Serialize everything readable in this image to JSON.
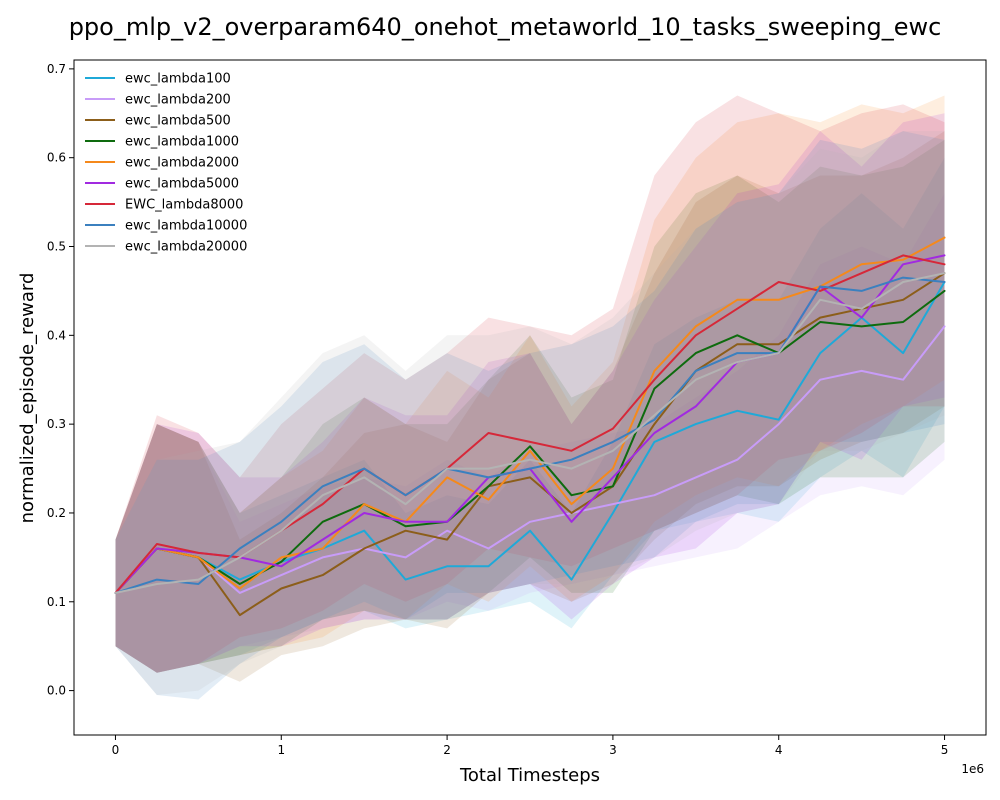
{
  "chart_data": {
    "type": "line",
    "title": "ppo_mlp_v2_overparam640_onehot_metaworld_10_tasks_sweeping_ewc",
    "xlabel": "Total Timesteps",
    "ylabel": "normalized_episode_reward",
    "x_offset_label": "1e6",
    "xlim": [
      -0.25,
      5.25
    ],
    "ylim": [
      -0.05,
      0.71
    ],
    "xticks": [
      0,
      1,
      2,
      3,
      4,
      5
    ],
    "yticks": [
      0.0,
      0.1,
      0.2,
      0.3,
      0.4,
      0.5,
      0.6,
      0.7
    ],
    "xtick_labels": [
      "0",
      "1",
      "2",
      "3",
      "4",
      "5"
    ],
    "ytick_labels": [
      "0.0",
      "0.1",
      "0.2",
      "0.3",
      "0.4",
      "0.5",
      "0.6",
      "0.7"
    ],
    "grid": false,
    "legend_position": "upper-left",
    "x": [
      0,
      0.25,
      0.5,
      0.75,
      1.0,
      1.25,
      1.5,
      1.75,
      2.0,
      2.25,
      2.5,
      2.75,
      3.0,
      3.25,
      3.5,
      3.75,
      4.0,
      4.25,
      4.5,
      4.75,
      5.0
    ],
    "series": [
      {
        "name": "ewc_lambda100",
        "color": "#1fa9d8",
        "values": [
          0.11,
          0.16,
          0.15,
          0.125,
          0.145,
          0.16,
          0.18,
          0.125,
          0.14,
          0.14,
          0.18,
          0.125,
          0.2,
          0.28,
          0.3,
          0.315,
          0.305,
          0.38,
          0.42,
          0.38,
          0.46
        ],
        "upper": [
          0.17,
          0.3,
          0.28,
          0.2,
          0.22,
          0.24,
          0.26,
          0.2,
          0.22,
          0.21,
          0.26,
          0.2,
          0.28,
          0.39,
          0.42,
          0.44,
          0.44,
          0.52,
          0.56,
          0.52,
          0.6
        ],
        "lower": [
          0.05,
          0.02,
          0.03,
          0.04,
          0.06,
          0.08,
          0.09,
          0.07,
          0.08,
          0.09,
          0.1,
          0.07,
          0.13,
          0.18,
          0.19,
          0.2,
          0.19,
          0.24,
          0.27,
          0.24,
          0.32
        ]
      },
      {
        "name": "ewc_lambda200",
        "color": "#c89cf8",
        "values": [
          0.11,
          0.16,
          0.15,
          0.11,
          0.13,
          0.15,
          0.16,
          0.15,
          0.18,
          0.16,
          0.19,
          0.2,
          0.21,
          0.22,
          0.24,
          0.26,
          0.3,
          0.35,
          0.36,
          0.35,
          0.41
        ],
        "upper": [
          0.17,
          0.3,
          0.28,
          0.19,
          0.21,
          0.23,
          0.24,
          0.23,
          0.26,
          0.24,
          0.27,
          0.28,
          0.29,
          0.3,
          0.33,
          0.36,
          0.4,
          0.48,
          0.5,
          0.48,
          0.56
        ],
        "lower": [
          0.05,
          0.02,
          0.03,
          0.05,
          0.06,
          0.07,
          0.08,
          0.08,
          0.1,
          0.09,
          0.11,
          0.12,
          0.13,
          0.14,
          0.15,
          0.16,
          0.19,
          0.22,
          0.23,
          0.22,
          0.26
        ]
      },
      {
        "name": "ewc_lambda500",
        "color": "#8c5e1a",
        "values": [
          0.11,
          0.16,
          0.15,
          0.085,
          0.115,
          0.13,
          0.16,
          0.18,
          0.17,
          0.23,
          0.24,
          0.2,
          0.23,
          0.3,
          0.36,
          0.39,
          0.39,
          0.42,
          0.43,
          0.44,
          0.47
        ],
        "upper": [
          0.17,
          0.3,
          0.28,
          0.17,
          0.2,
          0.24,
          0.29,
          0.3,
          0.28,
          0.35,
          0.38,
          0.3,
          0.36,
          0.47,
          0.55,
          0.58,
          0.56,
          0.58,
          0.58,
          0.6,
          0.63
        ],
        "lower": [
          0.05,
          0.02,
          0.03,
          0.01,
          0.04,
          0.05,
          0.07,
          0.08,
          0.07,
          0.11,
          0.12,
          0.1,
          0.12,
          0.17,
          0.21,
          0.23,
          0.23,
          0.26,
          0.28,
          0.29,
          0.32
        ]
      },
      {
        "name": "ewc_lambda1000",
        "color": "#0e6b0e",
        "values": [
          0.11,
          0.16,
          0.15,
          0.12,
          0.145,
          0.19,
          0.21,
          0.185,
          0.19,
          0.23,
          0.275,
          0.22,
          0.23,
          0.34,
          0.38,
          0.4,
          0.38,
          0.415,
          0.41,
          0.415,
          0.45
        ],
        "upper": [
          0.17,
          0.3,
          0.28,
          0.2,
          0.24,
          0.3,
          0.33,
          0.3,
          0.3,
          0.35,
          0.4,
          0.33,
          0.35,
          0.5,
          0.56,
          0.58,
          0.55,
          0.59,
          0.58,
          0.59,
          0.62
        ],
        "lower": [
          0.05,
          0.02,
          0.03,
          0.04,
          0.05,
          0.08,
          0.09,
          0.08,
          0.08,
          0.11,
          0.15,
          0.11,
          0.11,
          0.18,
          0.2,
          0.22,
          0.21,
          0.24,
          0.24,
          0.24,
          0.28
        ]
      },
      {
        "name": "ewc_lambda2000",
        "color": "#f5891b",
        "values": [
          0.11,
          0.16,
          0.15,
          0.115,
          0.15,
          0.16,
          0.21,
          0.19,
          0.24,
          0.215,
          0.27,
          0.21,
          0.25,
          0.36,
          0.41,
          0.44,
          0.44,
          0.455,
          0.48,
          0.485,
          0.51
        ],
        "upper": [
          0.17,
          0.3,
          0.28,
          0.2,
          0.24,
          0.27,
          0.33,
          0.3,
          0.36,
          0.33,
          0.4,
          0.32,
          0.37,
          0.53,
          0.6,
          0.64,
          0.65,
          0.64,
          0.66,
          0.65,
          0.67
        ],
        "lower": [
          0.05,
          0.02,
          0.03,
          0.04,
          0.05,
          0.06,
          0.09,
          0.08,
          0.12,
          0.1,
          0.14,
          0.1,
          0.13,
          0.19,
          0.22,
          0.24,
          0.23,
          0.27,
          0.3,
          0.32,
          0.35
        ]
      },
      {
        "name": "ewc_lambda5000",
        "color": "#a12ae0",
        "values": [
          0.11,
          0.16,
          0.155,
          0.15,
          0.14,
          0.17,
          0.2,
          0.19,
          0.19,
          0.24,
          0.25,
          0.19,
          0.24,
          0.29,
          0.32,
          0.37,
          0.38,
          0.455,
          0.42,
          0.48,
          0.49
        ],
        "upper": [
          0.17,
          0.3,
          0.29,
          0.24,
          0.24,
          0.28,
          0.33,
          0.31,
          0.31,
          0.37,
          0.38,
          0.3,
          0.36,
          0.44,
          0.5,
          0.56,
          0.57,
          0.63,
          0.59,
          0.64,
          0.65
        ],
        "lower": [
          0.05,
          0.02,
          0.03,
          0.05,
          0.05,
          0.07,
          0.08,
          0.08,
          0.08,
          0.11,
          0.12,
          0.08,
          0.12,
          0.15,
          0.16,
          0.2,
          0.21,
          0.28,
          0.26,
          0.32,
          0.33
        ]
      },
      {
        "name": "EWC_lambda8000",
        "color": "#d62839",
        "values": [
          0.11,
          0.165,
          0.155,
          0.15,
          0.18,
          0.21,
          0.25,
          0.22,
          0.25,
          0.29,
          0.28,
          0.27,
          0.295,
          0.35,
          0.4,
          0.43,
          0.46,
          0.45,
          0.47,
          0.49,
          0.48
        ],
        "upper": [
          0.17,
          0.31,
          0.29,
          0.24,
          0.3,
          0.34,
          0.38,
          0.35,
          0.38,
          0.42,
          0.41,
          0.4,
          0.43,
          0.58,
          0.64,
          0.67,
          0.65,
          0.63,
          0.65,
          0.66,
          0.64
        ],
        "lower": [
          0.05,
          0.02,
          0.03,
          0.06,
          0.07,
          0.09,
          0.12,
          0.1,
          0.12,
          0.16,
          0.15,
          0.14,
          0.16,
          0.18,
          0.2,
          0.22,
          0.26,
          0.27,
          0.29,
          0.32,
          0.32
        ]
      },
      {
        "name": "ewc_lambda10000",
        "color": "#3b80bf",
        "values": [
          0.11,
          0.125,
          0.12,
          0.16,
          0.19,
          0.23,
          0.25,
          0.22,
          0.25,
          0.24,
          0.25,
          0.26,
          0.28,
          0.305,
          0.36,
          0.38,
          0.38,
          0.455,
          0.45,
          0.465,
          0.46
        ],
        "upper": [
          0.17,
          0.26,
          0.26,
          0.28,
          0.32,
          0.37,
          0.39,
          0.35,
          0.38,
          0.36,
          0.38,
          0.39,
          0.41,
          0.45,
          0.52,
          0.55,
          0.56,
          0.62,
          0.61,
          0.63,
          0.62
        ],
        "lower": [
          0.05,
          -0.005,
          -0.01,
          0.03,
          0.06,
          0.08,
          0.1,
          0.08,
          0.11,
          0.11,
          0.12,
          0.13,
          0.14,
          0.15,
          0.19,
          0.21,
          0.21,
          0.28,
          0.28,
          0.29,
          0.3
        ]
      },
      {
        "name": "ewc_lambda20000",
        "color": "#b3b3b3",
        "values": [
          0.11,
          0.12,
          0.125,
          0.15,
          0.18,
          0.22,
          0.24,
          0.21,
          0.25,
          0.25,
          0.26,
          0.25,
          0.27,
          0.31,
          0.35,
          0.37,
          0.38,
          0.44,
          0.43,
          0.46,
          0.47
        ],
        "upper": [
          0.17,
          0.26,
          0.27,
          0.28,
          0.33,
          0.38,
          0.4,
          0.36,
          0.4,
          0.4,
          0.41,
          0.39,
          0.42,
          0.47,
          0.52,
          0.55,
          0.56,
          0.61,
          0.6,
          0.63,
          0.63
        ],
        "lower": [
          0.05,
          -0.005,
          0.0,
          0.03,
          0.05,
          0.08,
          0.1,
          0.08,
          0.11,
          0.11,
          0.12,
          0.12,
          0.13,
          0.15,
          0.18,
          0.2,
          0.21,
          0.27,
          0.27,
          0.29,
          0.31
        ]
      }
    ]
  }
}
